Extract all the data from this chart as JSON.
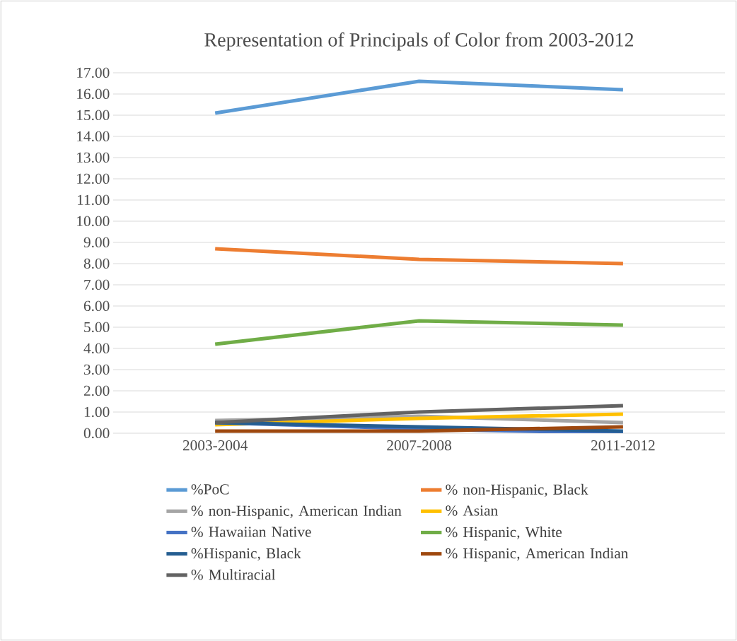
{
  "chart_data": {
    "type": "line",
    "title": "Representation of Principals of Color from 2003-2012",
    "categories": [
      "2003-2004",
      "2007-2008",
      "2011-2012"
    ],
    "series": [
      {
        "name": "%PoC",
        "color": "#5b9bd5",
        "values": [
          15.1,
          16.6,
          16.2
        ]
      },
      {
        "name": "% non-Hispanic, Black",
        "color": "#ed7d31",
        "values": [
          8.7,
          8.2,
          8.0
        ]
      },
      {
        "name": "% non-Hispanic, American Indian",
        "color": "#a5a5a5",
        "values": [
          0.6,
          0.8,
          0.5
        ]
      },
      {
        "name": "% Asian",
        "color": "#ffc000",
        "values": [
          0.4,
          0.7,
          0.9
        ]
      },
      {
        "name": "% Hawaiian Native",
        "color": "#4472c4",
        "values": [
          0.5,
          0.2,
          0.0
        ]
      },
      {
        "name": "% Hispanic, White",
        "color": "#70ad47",
        "values": [
          4.2,
          5.3,
          5.1
        ]
      },
      {
        "name": "%Hispanic, Black",
        "color": "#255e91",
        "values": [
          0.5,
          0.3,
          0.1
        ]
      },
      {
        "name": "% Hispanic, American Indian",
        "color": "#9e480e",
        "values": [
          0.1,
          0.1,
          0.3
        ]
      },
      {
        "name": "% Multiracial",
        "color": "#636363",
        "values": [
          0.5,
          1.0,
          1.3
        ]
      }
    ],
    "ylim": [
      0,
      17
    ],
    "yticks": [
      {
        "value": 0,
        "label": "0.00"
      },
      {
        "value": 1,
        "label": "1.00"
      },
      {
        "value": 2,
        "label": "2.00"
      },
      {
        "value": 3,
        "label": "3.00"
      },
      {
        "value": 4,
        "label": "4.00"
      },
      {
        "value": 5,
        "label": "5.00"
      },
      {
        "value": 6,
        "label": "6.00"
      },
      {
        "value": 7,
        "label": "7.00"
      },
      {
        "value": 8,
        "label": "8.00"
      },
      {
        "value": 9,
        "label": "9.00"
      },
      {
        "value": 10,
        "label": "10.00"
      },
      {
        "value": 11,
        "label": "11.00"
      },
      {
        "value": 12,
        "label": "12.00"
      },
      {
        "value": 13,
        "label": "13.00"
      },
      {
        "value": 14,
        "label": "14.00"
      },
      {
        "value": 15,
        "label": "15.00"
      },
      {
        "value": 16,
        "label": "16.00"
      },
      {
        "value": 17,
        "label": "17.00"
      }
    ],
    "grid": "y",
    "legend": "bottom",
    "marker": "none",
    "line_style": "solid"
  }
}
